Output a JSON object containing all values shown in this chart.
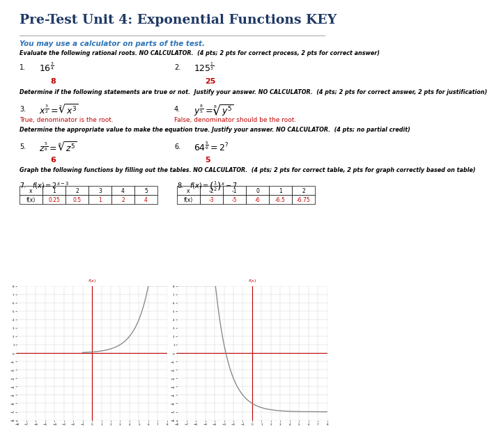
{
  "title": "Pre-Test Unit 4: Exponential Functions KEY",
  "subtitle": "You may use a calculator on parts of the test.",
  "bg_color": "#ffffff",
  "title_color": "#1f3864",
  "subtitle_color": "#2e75b6",
  "red_color": "#c00000",
  "black_color": "#000000",
  "graph_line_color": "#808080",
  "graph_axis_color": "#c00000",
  "inst1": "Evaluate the following rational roots. NO CALCULATOR.  (4 pts; 2 pts for correct process, 2 pts for correct answer)",
  "inst2": "Determine if the following statements are true or not.  Justify your answer. NO CALCULATOR.  (4 pts; 2 pts for correct answer, 2 pts for justification)",
  "inst3": "Determine the appropriate value to make the equation true. Justify your answer. NO CALCULATOR.  (4 pts; no partial credit)",
  "inst4": "Graph the following functions by filling out the tables. NO CALCULATOR.  (4 pts; 2 pts for correct table, 2 pts for graph correctly based on table)",
  "ans3": "True, denominator is the root.",
  "ans4": "False, denominator should be the root.",
  "ans1": "8",
  "ans2": "25",
  "ans5": "6",
  "ans6": "5",
  "func7": "f(x) = 2^{x-3}",
  "func8": "f(x) = \\left(\\frac{1}{2}\\right)^x - 7",
  "table7_x": [
    "x",
    "1",
    "2",
    "3",
    "4",
    "5"
  ],
  "table7_fx": [
    "f(x)",
    "0.25",
    "0.5",
    "1",
    "2",
    "4"
  ],
  "table8_x": [
    "x",
    "-2",
    "-1",
    "0",
    "1",
    "2"
  ],
  "table8_fx": [
    "f(x)",
    "-3",
    "-5",
    "-6",
    "-6.5",
    "-6.75"
  ],
  "graph7_xlim": [
    -8,
    8
  ],
  "graph7_ylim": [
    -8,
    8
  ],
  "graph8_xlim": [
    -8,
    8
  ],
  "graph8_ylim": [
    -8,
    8
  ]
}
